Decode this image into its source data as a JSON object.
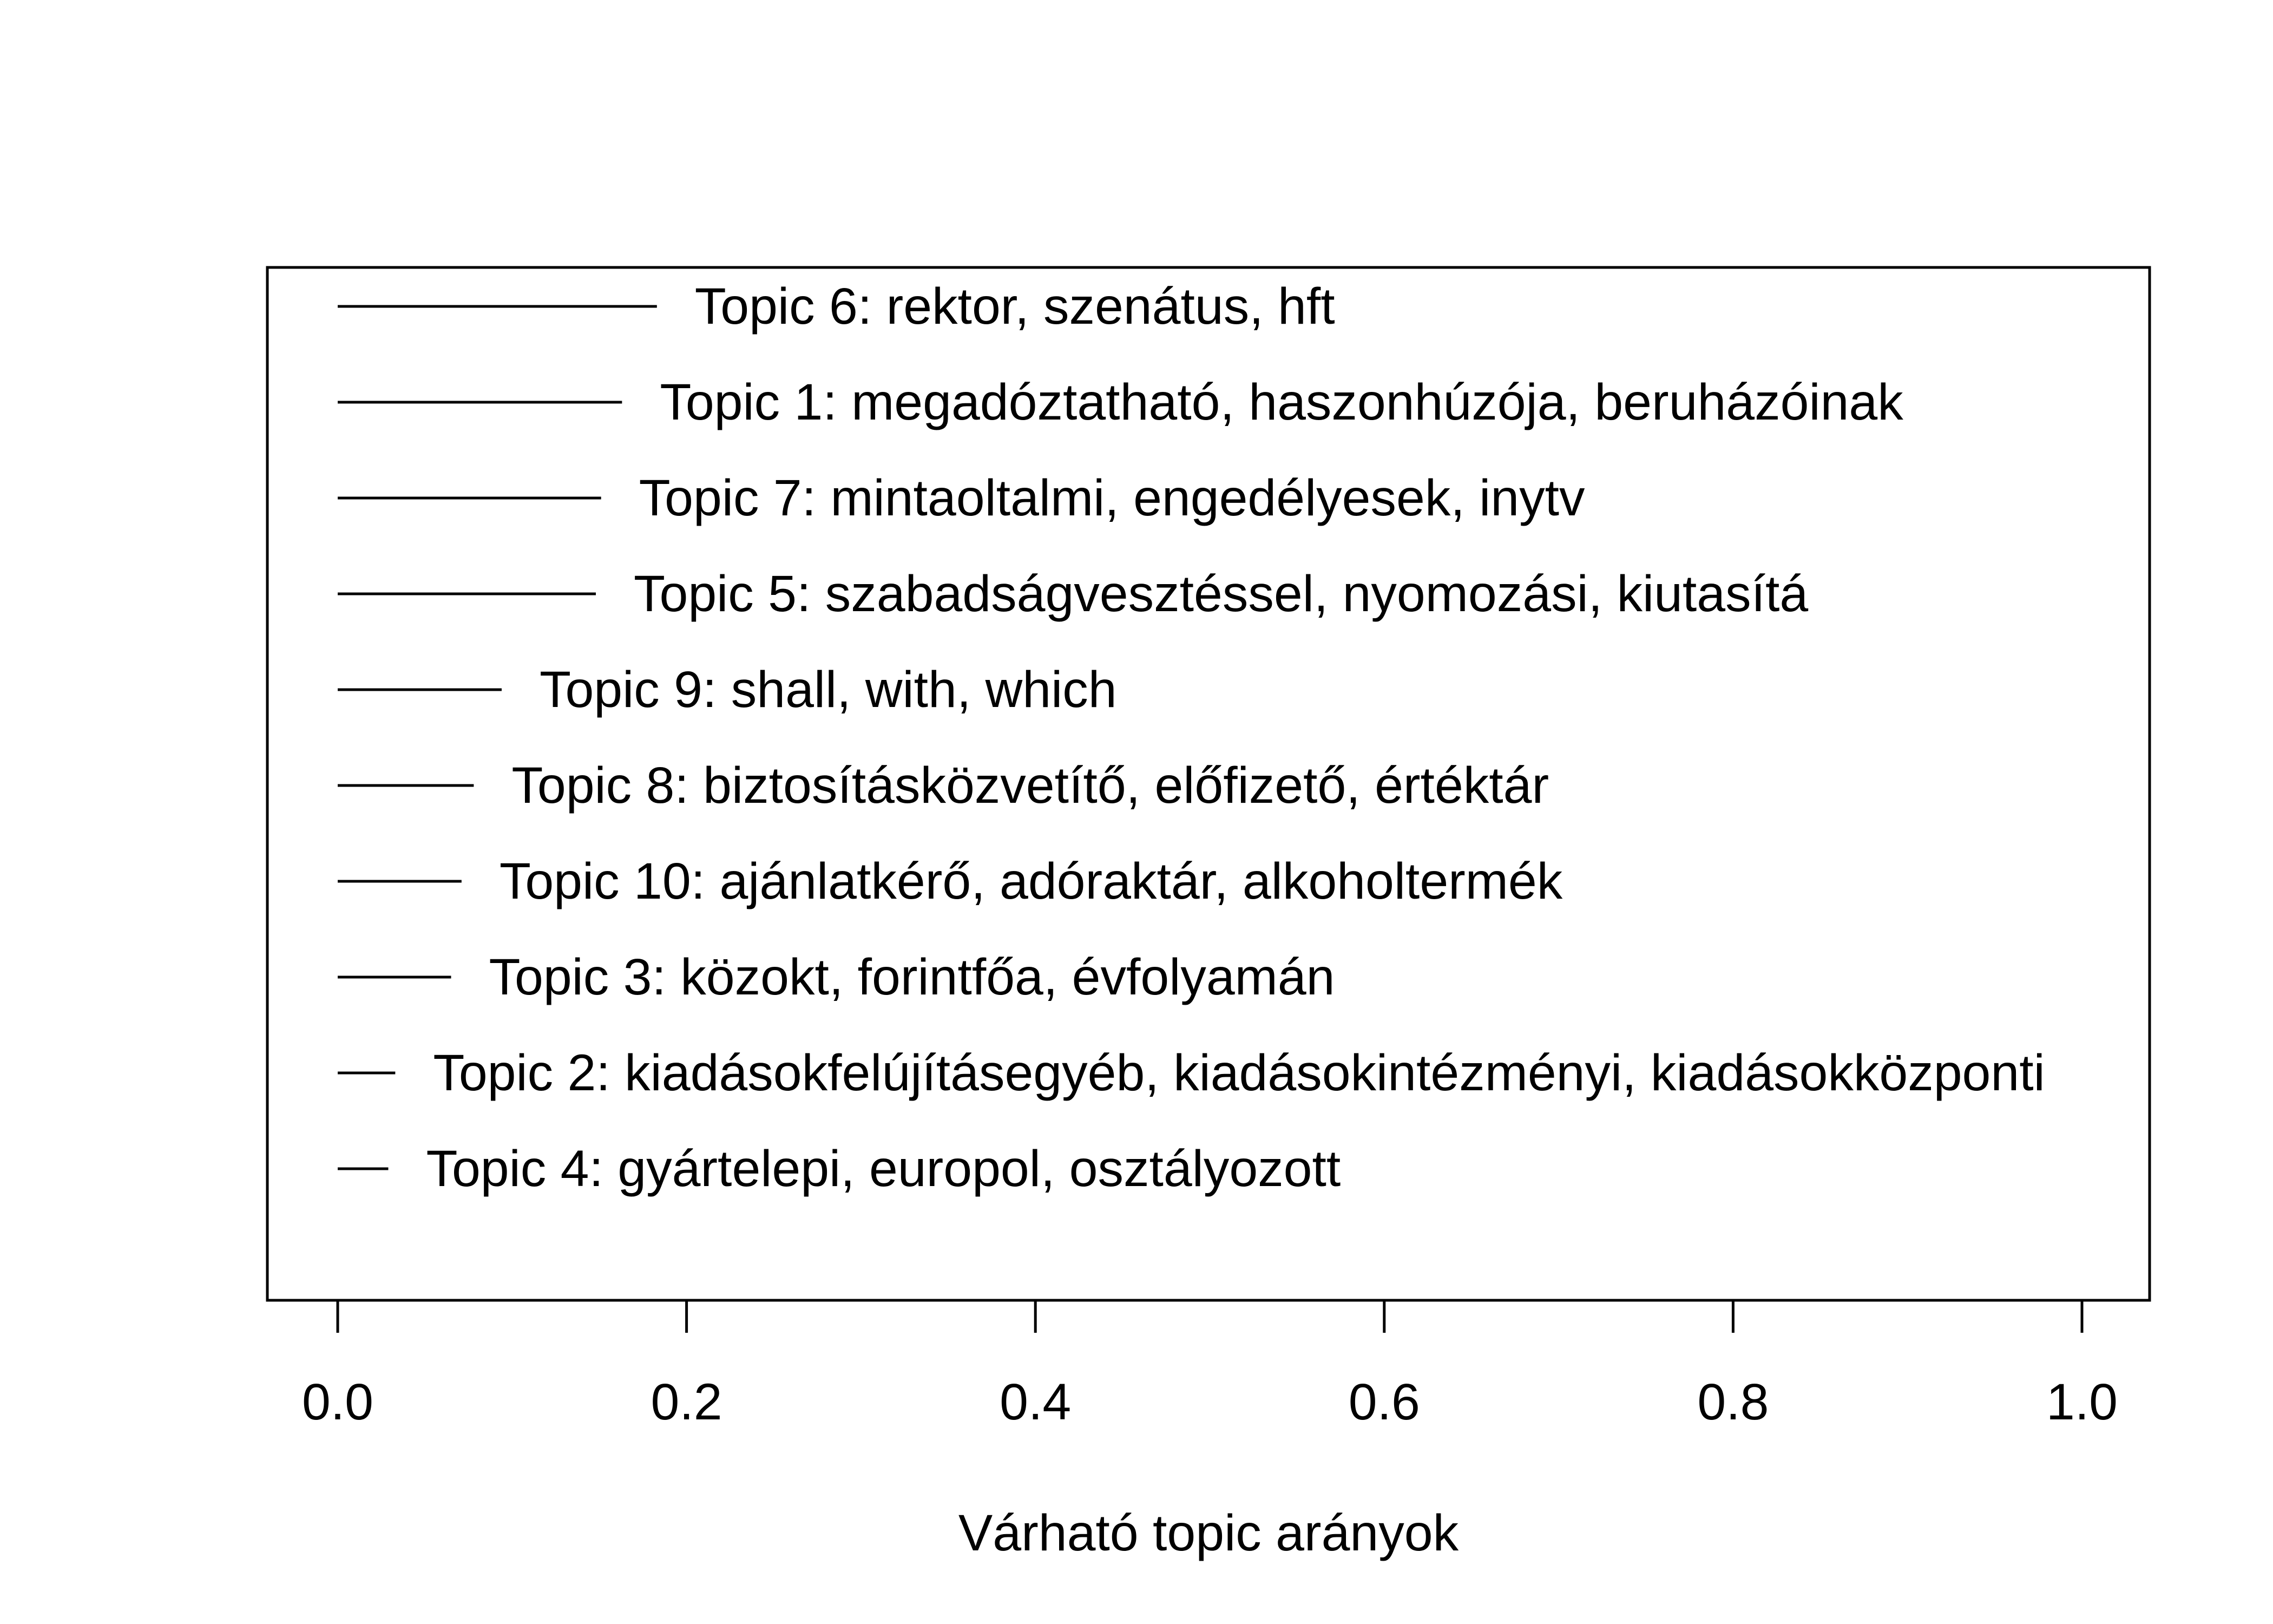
{
  "chart_data": {
    "type": "bar",
    "orientation": "horizontal",
    "title": "",
    "xlabel": "Várható topic arányok",
    "ylabel": "",
    "xlim": [
      0.0,
      1.0
    ],
    "xticks": [
      "0.0",
      "0.2",
      "0.4",
      "0.6",
      "0.8",
      "1.0"
    ],
    "grid": false,
    "categories": [
      "Topic 6: rektor, szenátus, hft",
      "Topic 1: megadóztatható, haszonhúzója, beruházóinak",
      "Topic 7: mintaoltalmi, engedélyesek, inytv",
      "Topic 5: szabadságvesztéssel, nyomozási, kiutasítá",
      "Topic 9: shall, with, which",
      "Topic 8: biztosításközvetítő, előfizető, értéktár",
      "Topic 10: ajánlatkérő, adóraktár, alkoholtermék",
      "Topic 3: közokt, forintfőa, évfolyamán",
      "Topic 2: kiadásokfelújításegyéb, kiadásokintézményi, kiadásokközponti",
      "Topic 4: gyártelepi, europol, osztályozott"
    ],
    "values": [
      0.183,
      0.163,
      0.151,
      0.148,
      0.094,
      0.078,
      0.071,
      0.065,
      0.033,
      0.029
    ],
    "colors": {
      "line": "#000000",
      "text": "#000000",
      "background": "#ffffff"
    }
  }
}
